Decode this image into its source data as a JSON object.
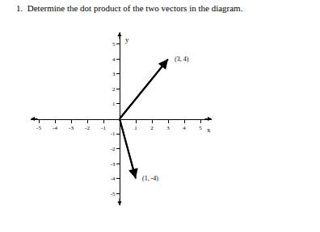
{
  "chart_data": {
    "type": "vector",
    "title": "1.  Determine the dot product of the two vectors in the diagram.",
    "x_label": "x",
    "y_label": "y",
    "points": [
      {
        "x": 3,
        "y": 4,
        "label": "(3, 4)"
      },
      {
        "x": 1,
        "y": -4,
        "label": "(1, -4)"
      }
    ],
    "xlim": [
      -5.5,
      5.7
    ],
    "ylim": [
      -5.8,
      5.8
    ],
    "xticks": [
      -5,
      -4,
      -3,
      -2,
      -1,
      1,
      2,
      3,
      4,
      5
    ],
    "yticks": [
      -5,
      -4,
      -3,
      -2,
      -1,
      1,
      2,
      3,
      4,
      5
    ],
    "grid": false,
    "color": "#000000"
  }
}
